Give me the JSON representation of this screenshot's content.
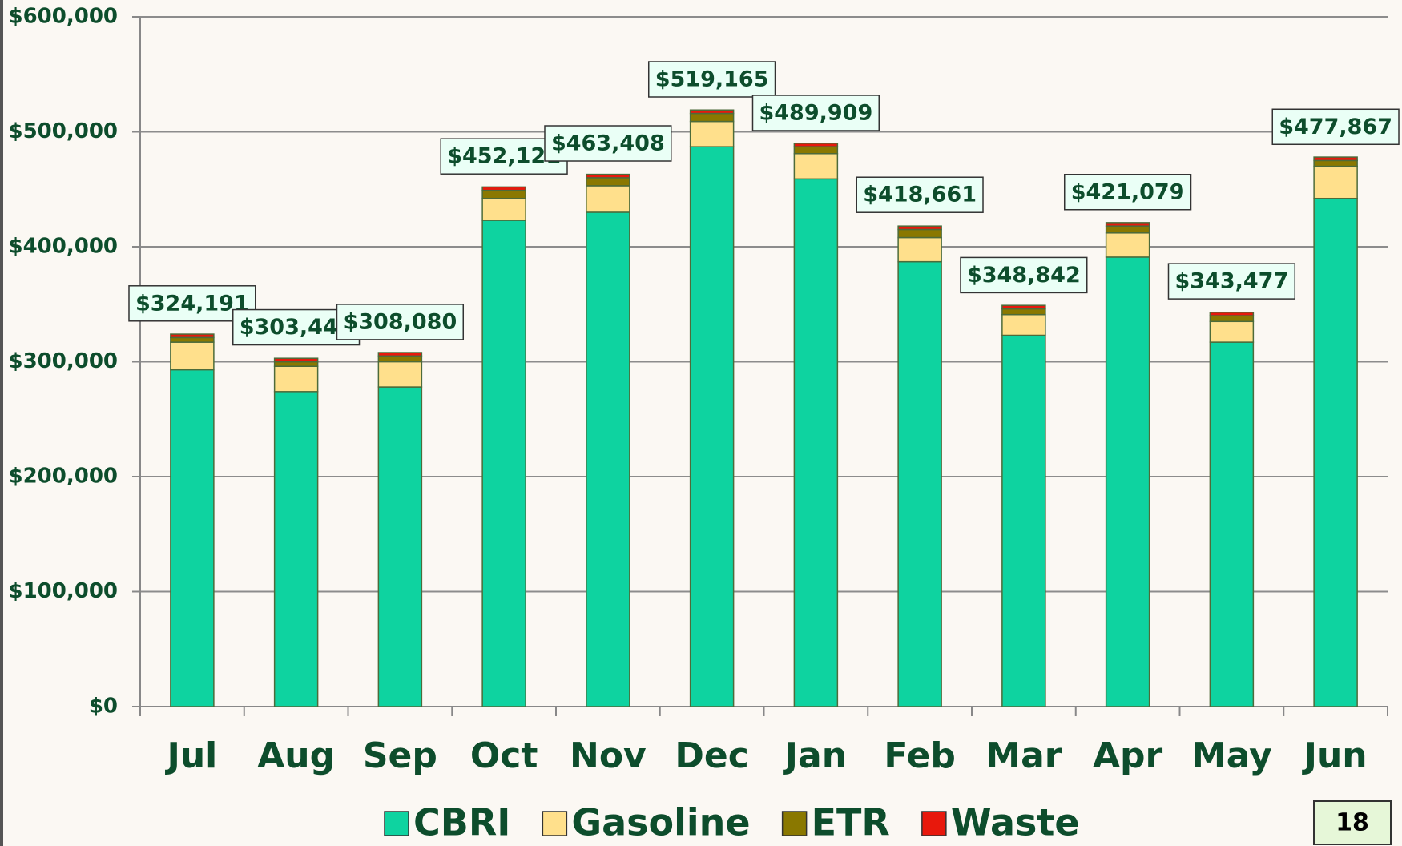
{
  "chart_data": {
    "type": "stacked_bar",
    "categories": [
      "Jul",
      "Aug",
      "Sep",
      "Oct",
      "Nov",
      "Dec",
      "Jan",
      "Feb",
      "Mar",
      "Apr",
      "May",
      "Jun"
    ],
    "series": [
      {
        "name": "CBRI",
        "color": "#0ed3a0",
        "values": [
          293000,
          274000,
          278000,
          423000,
          430000,
          487000,
          459000,
          387000,
          323000,
          391000,
          317000,
          442000
        ]
      },
      {
        "name": "Gasoline",
        "color": "#ffe08c",
        "values": [
          24000,
          22000,
          22000,
          19000,
          23000,
          22000,
          22000,
          21000,
          18000,
          21000,
          18000,
          28000
        ]
      },
      {
        "name": "ETR",
        "color": "#8a7800",
        "values": [
          4000,
          4000,
          5000,
          7000,
          7000,
          7000,
          6000,
          7000,
          5000,
          6000,
          5000,
          5000
        ]
      },
      {
        "name": "Waste",
        "color": "#e8180c",
        "values": [
          3000,
          3000,
          3000,
          3000,
          3000,
          3000,
          3000,
          3000,
          3000,
          3000,
          3000,
          3000
        ]
      }
    ],
    "totals": [
      324191,
      303447,
      308080,
      452121,
      463408,
      519165,
      489909,
      418661,
      348842,
      421079,
      343477,
      477867
    ],
    "total_labels": [
      "$324,191",
      "$303,447",
      "$308,080",
      "$452,121",
      "$463,408",
      "$519,165",
      "$489,909",
      "$418,661",
      "$348,842",
      "$421,079",
      "$343,477",
      "$477,867"
    ],
    "ylim": [
      0,
      600000
    ],
    "yticks": [
      {
        "value": 0,
        "label": "$0"
      },
      {
        "value": 100000,
        "label": "$100,000"
      },
      {
        "value": 200000,
        "label": "$200,000"
      },
      {
        "value": 300000,
        "label": "$300,000"
      },
      {
        "value": 400000,
        "label": "$400,000"
      },
      {
        "value": 500000,
        "label": "$500,000"
      },
      {
        "value": 600000,
        "label": "$600,000"
      }
    ],
    "grid": true,
    "legend": "bottom"
  },
  "page_number": "18"
}
